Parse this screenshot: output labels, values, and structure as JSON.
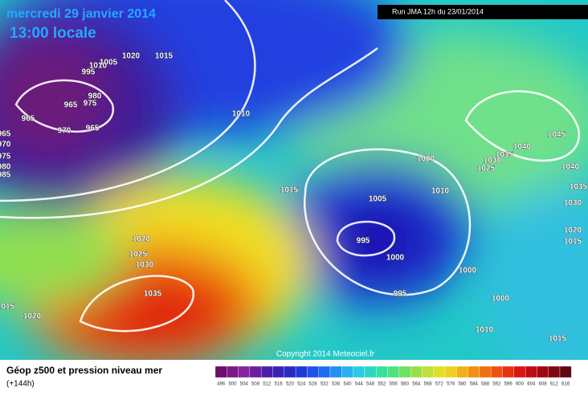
{
  "header": {
    "date": "mercredi 29 janvier 2014",
    "time": "13:00 locale",
    "run": "Run JMA 12h du 23/01/2014"
  },
  "copyright": "Copyright 2014 Meteociel.fr",
  "footer": {
    "title": "Géop z500 et pression niveau mer",
    "range": "(+144h)"
  },
  "isobars": [
    "1020",
    "1015",
    "1005",
    "1010",
    "995",
    "980",
    "975",
    "965",
    "965",
    "970",
    "965",
    "965",
    "970",
    "975",
    "980",
    "985",
    "1010",
    "1015",
    "1020",
    "1010",
    "1005",
    "995",
    "1000",
    "995",
    "1000",
    "1000",
    "1010",
    "1015",
    "1020",
    "1025",
    "1030",
    "1035",
    "1015",
    "1020",
    "1045",
    "1040",
    "1035",
    "1030",
    "1025",
    "1040",
    "1035",
    "1030",
    "1020",
    "1015"
  ],
  "colorbar": [
    "496",
    "500",
    "504",
    "508",
    "512",
    "516",
    "520",
    "524",
    "528",
    "532",
    "536",
    "540",
    "544",
    "548",
    "552",
    "556",
    "560",
    "564",
    "568",
    "572",
    "576",
    "580",
    "584",
    "588",
    "592",
    "596",
    "600",
    "604",
    "608",
    "612",
    "616"
  ]
}
